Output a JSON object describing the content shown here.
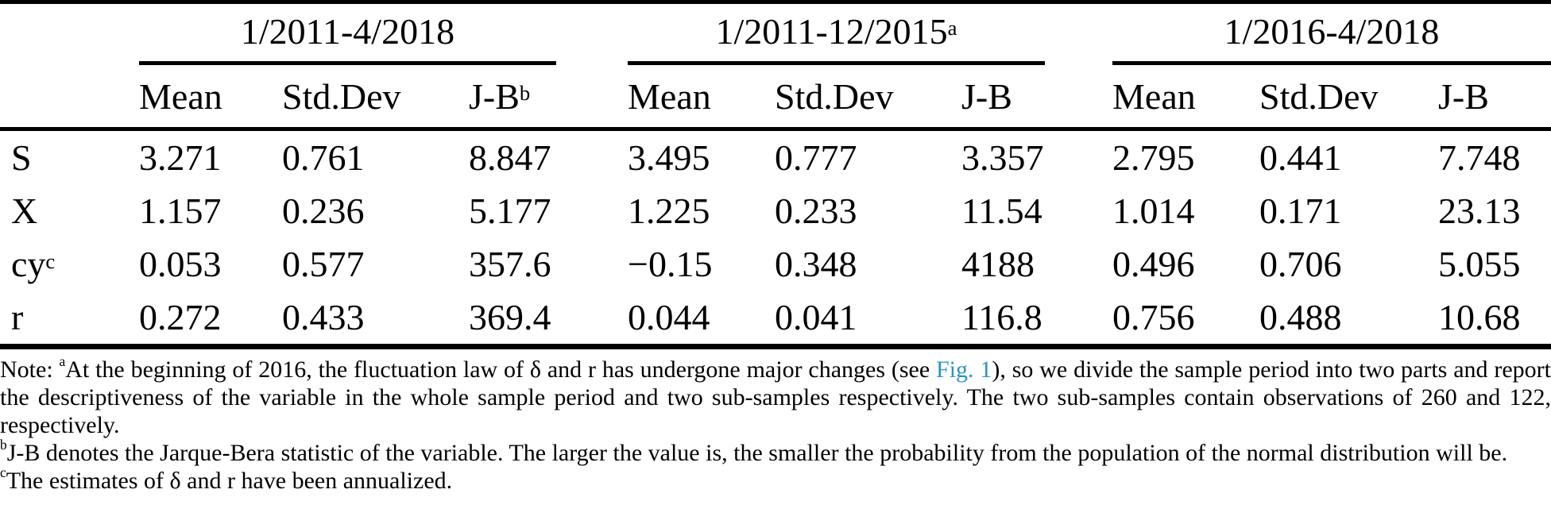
{
  "table": {
    "periods": [
      {
        "label": "1/2011-4/2018",
        "sup": ""
      },
      {
        "label": "1/2011-12/2015",
        "sup": "a"
      },
      {
        "label": "1/2016-4/2018",
        "sup": ""
      }
    ],
    "columns": [
      {
        "label": "Mean",
        "sup": ""
      },
      {
        "label": "Std.Dev",
        "sup": ""
      },
      {
        "label": "J-B",
        "sup": "b"
      },
      {
        "label": "Mean",
        "sup": ""
      },
      {
        "label": "Std.Dev",
        "sup": ""
      },
      {
        "label": "J-B",
        "sup": ""
      },
      {
        "label": "Mean",
        "sup": ""
      },
      {
        "label": "Std.Dev",
        "sup": ""
      },
      {
        "label": "J-B",
        "sup": ""
      }
    ],
    "rows": [
      {
        "label": "S",
        "sup": "",
        "values": [
          "3.271",
          "0.761",
          "8.847",
          "3.495",
          "0.777",
          "3.357",
          "2.795",
          "0.441",
          "7.748"
        ]
      },
      {
        "label": "X",
        "sup": "",
        "values": [
          "1.157",
          "0.236",
          "5.177",
          "1.225",
          "0.233",
          "11.54",
          "1.014",
          "0.171",
          "23.13"
        ]
      },
      {
        "label": "cy",
        "sup": "c",
        "values": [
          "0.053",
          "0.577",
          "357.6",
          "−0.15",
          "0.348",
          "4188",
          "0.496",
          "0.706",
          "5.055"
        ]
      },
      {
        "label": "r",
        "sup": "",
        "values": [
          "0.272",
          "0.433",
          "369.4",
          "0.044",
          "0.041",
          "116.8",
          "0.756",
          "0.488",
          "10.68"
        ]
      }
    ]
  },
  "notes": {
    "a": {
      "prefix": "Note: ",
      "sup": "a",
      "before_link": "At the beginning of 2016, the fluctuation law of δ and r has undergone major changes (see ",
      "link": "Fig. 1",
      "after_link": "), so we divide the sample period into two parts and report the descriptiveness of the variable in the whole sample period and two sub-samples respectively. The two sub-samples contain observations of 260 and 122, respectively."
    },
    "b": {
      "sup": "b",
      "text": "J-B denotes the Jarque-Bera statistic of the variable. The larger the value is, the smaller the probability from the population of the normal distribution will be."
    },
    "c": {
      "sup": "c",
      "text": "The estimates of δ and r have been annualized."
    },
    "link_color": "#2a95c5"
  }
}
